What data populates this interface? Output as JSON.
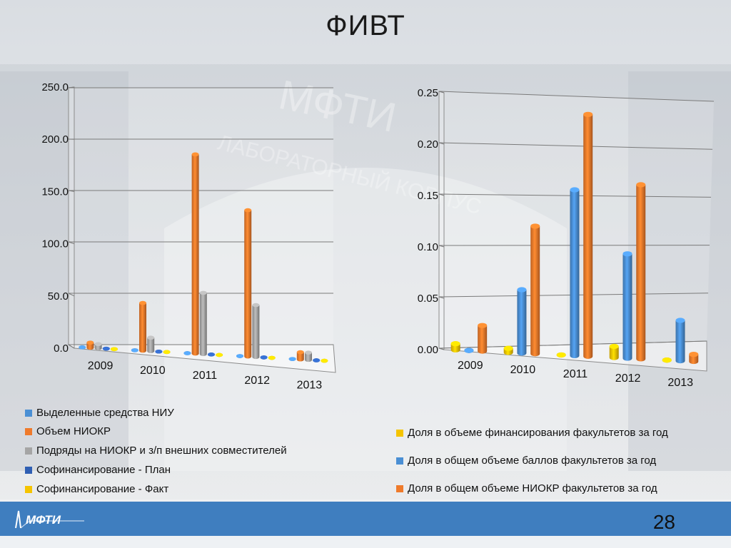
{
  "slide": {
    "title": "ФИВТ",
    "page_number": "28",
    "logo_text": "МФТИ",
    "background_text": [
      "МФТИ",
      "ЛАБОРАТОРНЫЙ КОРПУС"
    ]
  },
  "chart_data": [
    {
      "type": "bar",
      "categories": [
        "2009",
        "2010",
        "2011",
        "2012",
        "2013"
      ],
      "ylim": [
        0,
        250
      ],
      "yticks": [
        "0.0",
        "50.0",
        "100.0",
        "150.0",
        "200.0",
        "250.0"
      ],
      "series": [
        {
          "name": "Выделенные средства НИУ",
          "color": "#4a8fd4",
          "values": [
            0,
            0,
            0,
            0,
            0
          ]
        },
        {
          "name": "Объем НИОКР",
          "color": "#ef7a2b",
          "values": [
            5,
            46,
            192,
            141,
            7
          ]
        },
        {
          "name": "Подряды на НИОКР и з/п внешних совместителей",
          "color": "#a5a5a5",
          "values": [
            4,
            13,
            59,
            50,
            7
          ]
        },
        {
          "name": "Софинансирование - План",
          "color": "#2f5fb3",
          "values": [
            0,
            0,
            0,
            0,
            0
          ]
        },
        {
          "name": "Софинансирование - Факт",
          "color": "#f5c400",
          "values": [
            0,
            0,
            0,
            0,
            0
          ]
        }
      ],
      "grid": true,
      "legend": "bottom"
    },
    {
      "type": "bar",
      "categories": [
        "2009",
        "2010",
        "2011",
        "2012",
        "2013"
      ],
      "ylim": [
        0,
        0.25
      ],
      "yticks": [
        "0.00",
        "0.05",
        "0.10",
        "0.15",
        "0.20",
        "0.25"
      ],
      "series": [
        {
          "name": "Доля в объеме финансирования факультетов за год",
          "color": "#f5c400",
          "values": [
            0.006,
            0.004,
            0.0,
            0.011,
            0.0
          ]
        },
        {
          "name": "Доля в общем объеме баллов факультетов за год",
          "color": "#4a8fd4",
          "values": [
            0.0,
            0.062,
            0.163,
            0.103,
            0.04
          ]
        },
        {
          "name": "Доля в общем объеме НИОКР факультетов за год",
          "color": "#ef7a2b",
          "values": [
            0.025,
            0.125,
            0.238,
            0.172,
            0.007
          ]
        }
      ],
      "grid": true,
      "legend": "bottom"
    }
  ]
}
